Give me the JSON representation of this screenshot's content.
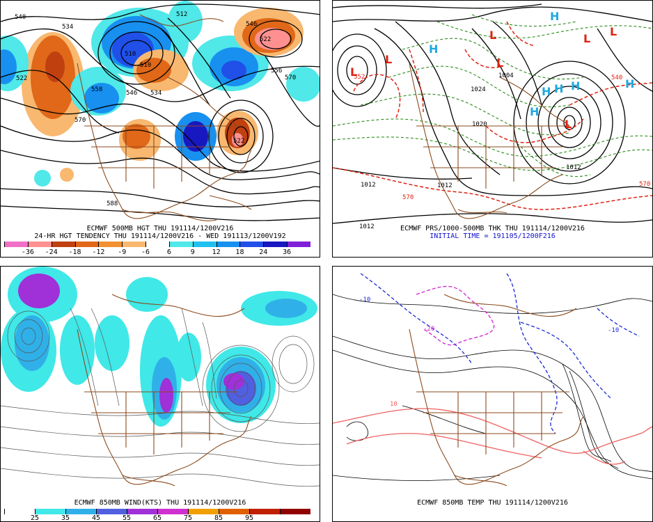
{
  "panels": {
    "tendency": {
      "caption1": "ECMWF 500MB HGT THU 191114/1200V216",
      "caption2": "24-HR HGT TENDENCY THU 191114/1200V216 - WED 191113/1200V192",
      "scale_labels": [
        "-36",
        "-24",
        "-18",
        "-12",
        "-9",
        "-6",
        "6",
        "9",
        "12",
        "18",
        "24",
        "36"
      ],
      "scale_colors": [
        "#f070c8",
        "#ff9090",
        "#c04010",
        "#e06818",
        "#f09030",
        "#f8b870",
        "#ffffff",
        "#50e8e8",
        "#20c0f0",
        "#1890f0",
        "#2050e8",
        "#1818c0",
        "#8020d8"
      ],
      "contour_labels": [
        "540",
        "534",
        "522",
        "558",
        "546",
        "534",
        "510",
        "570",
        "588",
        "522",
        "556",
        "570",
        "522",
        "546",
        "512",
        "510"
      ]
    },
    "thickness": {
      "caption1": "ECMWF PRS/1000-500MB THK THU 191114/1200V216",
      "caption2": "INITIAL TIME = 191105/1200F216",
      "highs_lows": [
        "L",
        "L",
        "L",
        "L",
        "L",
        "L",
        "L",
        "H",
        "H",
        "H",
        "H",
        "H",
        "H",
        "H"
      ],
      "contour_labels": [
        "1012",
        "1012",
        "1012",
        "1012",
        "570",
        "570",
        "540",
        "1020",
        "1004",
        "1024",
        "552"
      ]
    },
    "wind": {
      "caption1": "ECMWF 850MB WIND(KTS) THU 191114/1200V216",
      "scale_labels": [
        "25",
        "35",
        "45",
        "55",
        "65",
        "75",
        "85",
        "95"
      ],
      "scale_colors": [
        "#ffffff",
        "#40e8e8",
        "#30b0e8",
        "#5060e0",
        "#a030d8",
        "#d030d0",
        "#f0a000",
        "#e06000",
        "#c02000",
        "#900000"
      ]
    },
    "temperature": {
      "caption1": "ECMWF 850MB TEMP THU 191114/1200V216",
      "contour_labels": [
        "-10",
        "-20",
        "-10",
        "10"
      ]
    }
  }
}
